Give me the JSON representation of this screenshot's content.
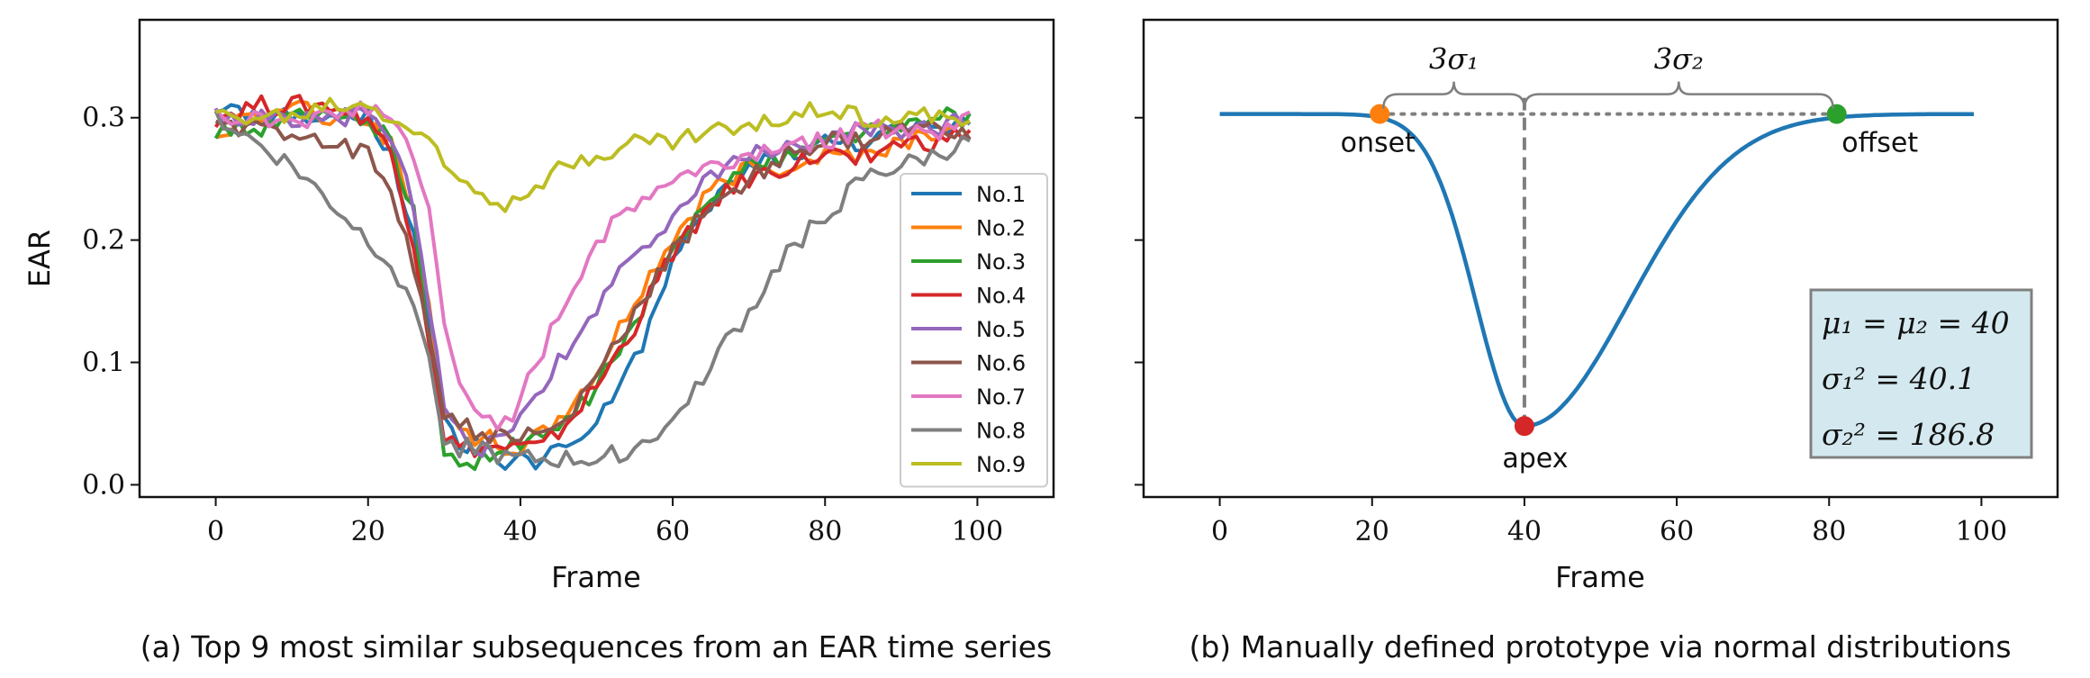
{
  "chart_data": [
    {
      "type": "line",
      "panel": "a",
      "caption": "(a) Top 9 most similar subsequences from an EAR time series",
      "xlabel": "Frame",
      "ylabel": "EAR",
      "xlim": [
        -10,
        110
      ],
      "ylim": [
        -0.01,
        0.38
      ],
      "xticks": [
        0,
        20,
        40,
        60,
        80,
        100
      ],
      "xtick_labels": [
        "0",
        "20",
        "40",
        "60",
        "80",
        "100"
      ],
      "yticks": [
        0.0,
        0.1,
        0.2,
        0.3
      ],
      "ytick_labels": [
        "0.0",
        "0.1",
        "0.2",
        "0.3"
      ],
      "grid": false,
      "legend_position": "center-right",
      "x": [
        0,
        5,
        10,
        15,
        20,
        23,
        26,
        28,
        30,
        32,
        35,
        38,
        40,
        43,
        46,
        50,
        55,
        60,
        65,
        70,
        75,
        80,
        85,
        90,
        95,
        99
      ],
      "series": [
        {
          "name": "No.1",
          "color": "#1f77b4",
          "values": [
            0.31,
            0.3,
            0.3,
            0.3,
            0.3,
            0.27,
            0.2,
            0.13,
            0.05,
            0.03,
            0.03,
            0.02,
            0.02,
            0.02,
            0.03,
            0.05,
            0.1,
            0.18,
            0.23,
            0.26,
            0.27,
            0.28,
            0.28,
            0.29,
            0.29,
            0.3
          ]
        },
        {
          "name": "No.2",
          "color": "#ff7f0e",
          "values": [
            0.29,
            0.3,
            0.31,
            0.3,
            0.3,
            0.28,
            0.22,
            0.15,
            0.06,
            0.04,
            0.04,
            0.03,
            0.03,
            0.04,
            0.06,
            0.09,
            0.15,
            0.2,
            0.24,
            0.26,
            0.26,
            0.27,
            0.27,
            0.28,
            0.29,
            0.29
          ]
        },
        {
          "name": "No.3",
          "color": "#2ca02c",
          "values": [
            0.29,
            0.29,
            0.3,
            0.3,
            0.3,
            0.28,
            0.22,
            0.12,
            0.02,
            0.02,
            0.02,
            0.03,
            0.03,
            0.04,
            0.05,
            0.08,
            0.13,
            0.19,
            0.24,
            0.26,
            0.27,
            0.28,
            0.29,
            0.29,
            0.3,
            0.3
          ]
        },
        {
          "name": "No.4",
          "color": "#d62728",
          "values": [
            0.3,
            0.31,
            0.31,
            0.31,
            0.3,
            0.27,
            0.2,
            0.12,
            0.04,
            0.03,
            0.03,
            0.03,
            0.03,
            0.03,
            0.05,
            0.08,
            0.13,
            0.19,
            0.23,
            0.25,
            0.26,
            0.27,
            0.27,
            0.28,
            0.28,
            0.29
          ]
        },
        {
          "name": "No.5",
          "color": "#9467bd",
          "values": [
            0.3,
            0.3,
            0.3,
            0.3,
            0.3,
            0.28,
            0.23,
            0.15,
            0.06,
            0.04,
            0.03,
            0.04,
            0.05,
            0.08,
            0.11,
            0.14,
            0.19,
            0.22,
            0.25,
            0.27,
            0.28,
            0.28,
            0.29,
            0.29,
            0.29,
            0.3
          ]
        },
        {
          "name": "No.6",
          "color": "#8c564b",
          "values": [
            0.29,
            0.29,
            0.29,
            0.28,
            0.27,
            0.24,
            0.18,
            0.13,
            0.06,
            0.05,
            0.04,
            0.04,
            0.04,
            0.04,
            0.05,
            0.09,
            0.14,
            0.19,
            0.23,
            0.25,
            0.27,
            0.28,
            0.28,
            0.29,
            0.29,
            0.29
          ]
        },
        {
          "name": "No.7",
          "color": "#e377c2",
          "values": [
            0.3,
            0.3,
            0.3,
            0.3,
            0.31,
            0.3,
            0.27,
            0.22,
            0.13,
            0.08,
            0.06,
            0.05,
            0.07,
            0.11,
            0.15,
            0.2,
            0.23,
            0.25,
            0.26,
            0.27,
            0.28,
            0.28,
            0.29,
            0.29,
            0.29,
            0.3
          ]
        },
        {
          "name": "No.8",
          "color": "#7f7f7f",
          "values": [
            0.3,
            0.28,
            0.26,
            0.23,
            0.2,
            0.18,
            0.15,
            0.1,
            0.04,
            0.03,
            0.03,
            0.02,
            0.02,
            0.02,
            0.02,
            0.02,
            0.03,
            0.05,
            0.1,
            0.14,
            0.19,
            0.22,
            0.25,
            0.26,
            0.27,
            0.28
          ]
        },
        {
          "name": "No.9",
          "color": "#bcbd22",
          "values": [
            0.3,
            0.3,
            0.3,
            0.31,
            0.31,
            0.3,
            0.29,
            0.28,
            0.26,
            0.25,
            0.24,
            0.23,
            0.24,
            0.25,
            0.26,
            0.27,
            0.28,
            0.28,
            0.29,
            0.29,
            0.3,
            0.31,
            0.3,
            0.3,
            0.3,
            0.3
          ]
        }
      ]
    },
    {
      "type": "line",
      "panel": "b",
      "caption": "(b) Manually defined prototype via normal distributions",
      "xlabel": "Frame",
      "xlim": [
        -10,
        110
      ],
      "ylim": [
        -0.01,
        0.38
      ],
      "xticks": [
        0,
        20,
        40,
        60,
        80,
        100
      ],
      "xtick_labels": [
        "0",
        "20",
        "40",
        "60",
        "80",
        "100"
      ],
      "yticks": [
        0.0,
        0.1,
        0.2,
        0.3
      ],
      "grid": false,
      "prototype": {
        "baseline": 0.303,
        "min": 0.048,
        "mu1": 40,
        "mu2": 40,
        "sigma1_sq": 40.1,
        "sigma2_sq": 186.8,
        "x_start": 0,
        "x_end": 99
      },
      "points": [
        {
          "label": "onset",
          "x": 21,
          "y": 0.303,
          "color": "#ff7f0e"
        },
        {
          "label": "apex",
          "x": 40,
          "y": 0.048,
          "color": "#d62728"
        },
        {
          "label": "offset",
          "x": 81,
          "y": 0.303,
          "color": "#2ca02c"
        }
      ],
      "brace_labels": [
        "3σ₁",
        "3σ₂"
      ],
      "info_box": [
        "μ₁ = μ₂ = 40",
        "σ₁² = 40.1",
        "σ₂² = 186.8"
      ],
      "info_box_color": "#d4e9ef"
    }
  ]
}
